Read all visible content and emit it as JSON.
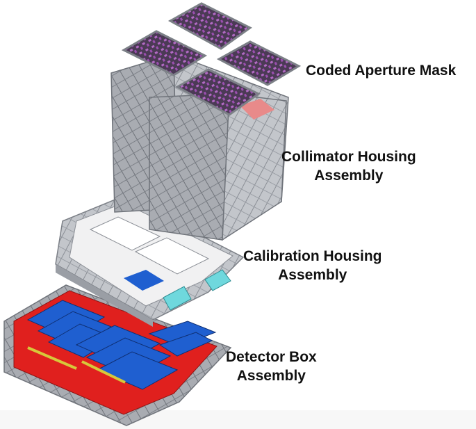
{
  "labels": {
    "mask": "Coded Aperture Mask",
    "collimator": [
      "Collimator Housing",
      "Assembly"
    ],
    "calibration": [
      "Calibration Housing",
      "Assembly"
    ],
    "detector": [
      "Detector Box",
      "Assembly"
    ]
  },
  "colors": {
    "frame": "#b4b7bc",
    "frame_dark": "#7c8087",
    "mask_pattern": "#6a2a7a",
    "detector_base": "#e0201e",
    "detector_modules": "#1f5fd0",
    "calibration_windows": "#6fd8dd",
    "collimator_accent": "#e88a8a",
    "background": "#ffffff"
  },
  "icons": [
    "coded-aperture-mask-panels",
    "collimator-housing-stack",
    "calibration-housing-frame",
    "detector-box-array"
  ]
}
